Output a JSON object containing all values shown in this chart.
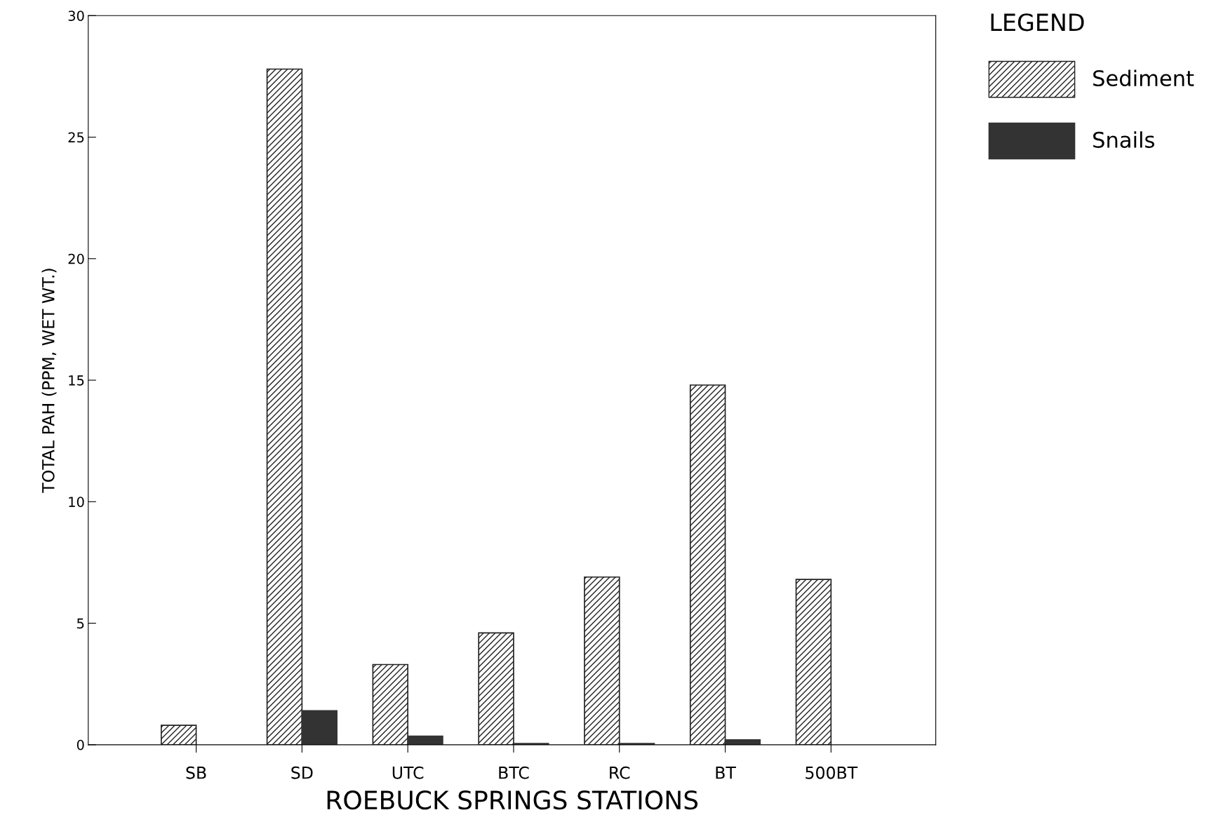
{
  "chart_data": {
    "type": "bar",
    "xlabel": "ROEBUCK SPRINGS STATIONS",
    "ylabel": "TOTAL PAH (PPM, WET WT.)",
    "legend_title": "LEGEND",
    "categories": [
      "SB",
      "SD",
      "UTC",
      "BTC",
      "RC",
      "BT",
      "500BT"
    ],
    "series": [
      {
        "name": "Sediment",
        "color": "#222222",
        "values": [
          0.8,
          27.8,
          3.3,
          4.6,
          6.9,
          14.8,
          6.8
        ]
      },
      {
        "name": "Snails",
        "color": "#333333",
        "values": [
          null,
          1.4,
          0.35,
          0.05,
          0.05,
          0.2,
          null
        ]
      }
    ],
    "ylim": [
      0,
      30
    ],
    "yticks": [
      0,
      5,
      10,
      15,
      20,
      25,
      30
    ],
    "grid": false,
    "legend": "top right"
  }
}
